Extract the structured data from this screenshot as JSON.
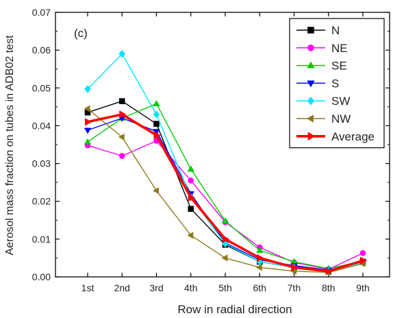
{
  "chart_data": {
    "type": "line",
    "panel_label": "(c)",
    "xlabel": "Row in radial direction",
    "ylabel": "Aerosol mass fraction on tubes in ADB02 test",
    "categories": [
      "1st",
      "2nd",
      "3rd",
      "4th",
      "5th",
      "6th",
      "7th",
      "8th",
      "9th"
    ],
    "ylim": [
      0,
      0.07
    ],
    "yticks": [
      "0.00",
      "0.01",
      "0.02",
      "0.03",
      "0.04",
      "0.05",
      "0.06",
      "0.07"
    ],
    "grid": false,
    "legend_position": "top-right",
    "series": [
      {
        "name": "N",
        "color": "#000000",
        "marker": "square",
        "values": [
          0.0435,
          0.0465,
          0.0405,
          0.018,
          0.0085,
          0.004,
          0.0025,
          0.0015,
          0.004
        ]
      },
      {
        "name": "NE",
        "color": "#ff00ff",
        "marker": "circle",
        "values": [
          0.0348,
          0.032,
          0.036,
          0.0255,
          0.0145,
          0.0078,
          0.0038,
          0.002,
          0.0063
        ]
      },
      {
        "name": "SE",
        "color": "#00cc00",
        "marker": "triangle-up",
        "values": [
          0.0357,
          0.042,
          0.0458,
          0.0285,
          0.0148,
          0.007,
          0.004,
          0.0022,
          0.0042
        ]
      },
      {
        "name": "S",
        "color": "#0000ff",
        "marker": "triangle-down",
        "values": [
          0.0388,
          0.042,
          0.0385,
          0.022,
          0.009,
          0.0045,
          0.003,
          0.0018,
          0.004
        ]
      },
      {
        "name": "SW",
        "color": "#00e5ff",
        "marker": "diamond",
        "values": [
          0.0497,
          0.059,
          0.043,
          0.021,
          0.0088,
          0.004,
          0.0025,
          0.0015,
          0.0038
        ]
      },
      {
        "name": "NW",
        "color": "#8b7a1a",
        "marker": "triangle-left",
        "values": [
          0.0445,
          0.037,
          0.0228,
          0.011,
          0.005,
          0.0025,
          0.0015,
          0.0012,
          0.0035
        ]
      },
      {
        "name": "Average",
        "color": "#ff0000",
        "marker": "triangle-right",
        "values": [
          0.041,
          0.043,
          0.0375,
          0.021,
          0.01,
          0.005,
          0.0025,
          0.0015,
          0.0043
        ]
      }
    ]
  }
}
